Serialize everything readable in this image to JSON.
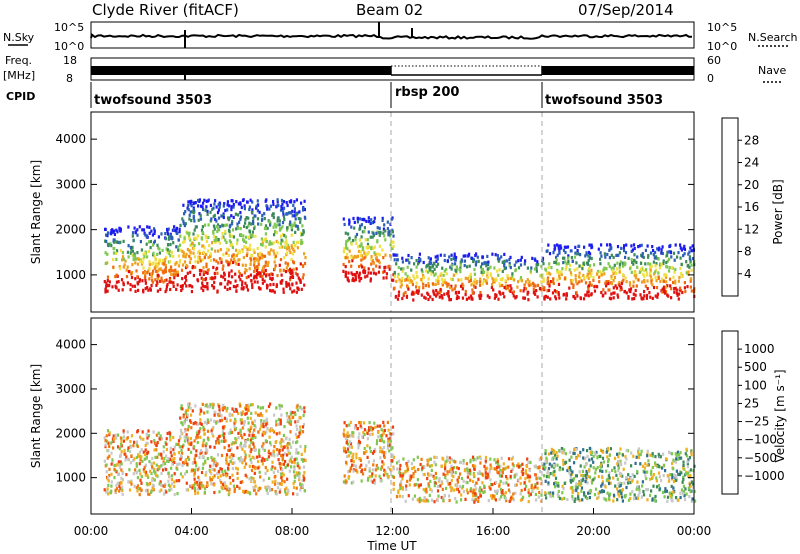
{
  "header": {
    "left": "Clyde River (fitACF)",
    "center": "Beam 02",
    "right": "07/Sep/2014"
  },
  "left_labels": {
    "nsky": "N.Sky",
    "freq": "Freq.",
    "mhz": "[MHz]",
    "cpid": "CPID"
  },
  "right_labels": {
    "nsearch": "N.Search",
    "nave": "Nave"
  },
  "noise_ticks": {
    "left_top": "10^5",
    "left_bottom": "10^0",
    "right_top": "10^5",
    "right_bottom": "10^0"
  },
  "freq_ticks": {
    "left_top": "18",
    "left_bottom": "8",
    "right_top": "60",
    "right_bottom": "0"
  },
  "cpid_segments": [
    {
      "label": "twofsound 3503",
      "start_hour": 0,
      "end_hour": 12
    },
    {
      "label": "rbsp 200",
      "start_hour": 12,
      "end_hour": 18
    },
    {
      "label": "twofsound 3503",
      "start_hour": 18,
      "end_hour": 24
    }
  ],
  "chart_data": [
    {
      "type": "heatmap",
      "name": "power-panel",
      "xlabel": "",
      "ylabel": "Slant Range [km]",
      "xlim": [
        0,
        24
      ],
      "ylim": [
        180,
        4600
      ],
      "yticks": [
        "1000",
        "2000",
        "3000",
        "4000"
      ],
      "ytick_values": [
        1000,
        2000,
        3000,
        4000
      ],
      "colorbar": {
        "label": "Power [dB]",
        "ticks": [
          "4",
          "8",
          "12",
          "16",
          "20",
          "24",
          "28"
        ],
        "colors": [
          "#1c1cf0",
          "#2c5fb8",
          "#3a8a5a",
          "#7ec850",
          "#f0e040",
          "#f0a020",
          "#f06a10",
          "#e01010"
        ]
      },
      "vertical_markers_hour": [
        12,
        18
      ],
      "scatter_regions": [
        {
          "from_hour": 0.5,
          "to_hour": 3.5,
          "range_km": [
            650,
            2100
          ],
          "color_profile": "power"
        },
        {
          "from_hour": 3.5,
          "to_hour": 8.5,
          "range_km": [
            650,
            2700
          ],
          "color_profile": "power"
        },
        {
          "from_hour": 10.0,
          "to_hour": 12.0,
          "range_km": [
            900,
            2300
          ],
          "color_profile": "power"
        },
        {
          "from_hour": 12.0,
          "to_hour": 18.0,
          "range_km": [
            480,
            1500
          ],
          "color_profile": "power"
        },
        {
          "from_hour": 18.0,
          "to_hour": 24.0,
          "range_km": [
            500,
            1700
          ],
          "color_profile": "power"
        }
      ]
    },
    {
      "type": "heatmap",
      "name": "velocity-panel",
      "xlabel": "Time UT",
      "ylabel": "Slant Range [km]",
      "xlim": [
        0,
        24
      ],
      "ylim": [
        180,
        4600
      ],
      "xticks": [
        "00:00",
        "04:00",
        "08:00",
        "12:00",
        "16:00",
        "20:00",
        "00:00"
      ],
      "xtick_values": [
        0,
        4,
        8,
        12,
        16,
        20,
        24
      ],
      "yticks": [
        "1000",
        "2000",
        "3000",
        "4000"
      ],
      "ytick_values": [
        1000,
        2000,
        3000,
        4000
      ],
      "colorbar": {
        "label": "Velocity [m s⁻¹]",
        "ticks": [
          "1000",
          "500",
          "100",
          "25",
          "−25",
          "−100",
          "−500",
          "−1000"
        ],
        "colors": [
          "#2040b0",
          "#2e6e8e",
          "#3a8a5a",
          "#7ec850",
          "#c8c8c8",
          "#f0b020",
          "#f07a10",
          "#f04010",
          "#e01010"
        ]
      },
      "vertical_markers_hour": [
        12,
        18
      ],
      "scatter_regions": [
        {
          "from_hour": 0.5,
          "to_hour": 3.5,
          "range_km": [
            650,
            2100
          ],
          "color_profile": "velocity"
        },
        {
          "from_hour": 3.5,
          "to_hour": 8.5,
          "range_km": [
            650,
            2700
          ],
          "color_profile": "velocity"
        },
        {
          "from_hour": 10.0,
          "to_hour": 12.0,
          "range_km": [
            900,
            2300
          ],
          "color_profile": "velocity"
        },
        {
          "from_hour": 12.0,
          "to_hour": 18.0,
          "range_km": [
            480,
            1500
          ],
          "color_profile": "velocity"
        },
        {
          "from_hour": 18.0,
          "to_hour": 24.0,
          "range_km": [
            500,
            1700
          ],
          "color_profile": "velocity"
        }
      ]
    }
  ]
}
